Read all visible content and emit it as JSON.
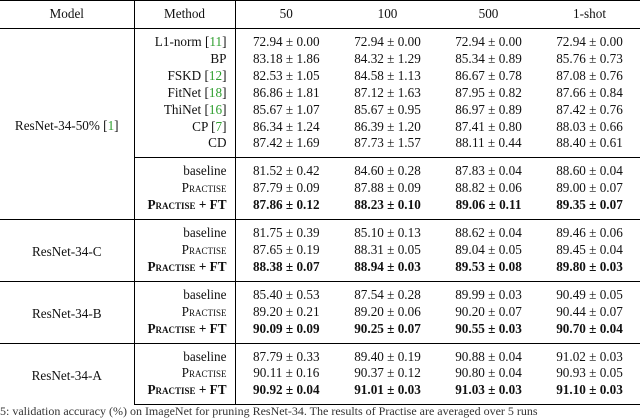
{
  "table": {
    "headers": [
      "Model",
      "Method",
      "50",
      "100",
      "500",
      "1-shot"
    ],
    "groups": [
      {
        "model": "ResNet-34-50%",
        "model_ref": "1",
        "rows": [
          {
            "method": "L1-norm",
            "ref": "11",
            "values": [
              "72.94 ± 0.00",
              "72.94 ± 0.00",
              "72.94 ± 0.00",
              "72.94 ± 0.00"
            ]
          },
          {
            "method": "BP",
            "ref": "",
            "values": [
              "83.18 ± 1.86",
              "84.32 ± 1.29",
              "85.34 ± 0.89",
              "85.76 ± 0.73"
            ]
          },
          {
            "method": "FSKD",
            "ref": "12",
            "values": [
              "82.53 ± 1.05",
              "84.58 ± 1.13",
              "86.67 ± 0.78",
              "87.08 ± 0.76"
            ]
          },
          {
            "method": "FitNet",
            "ref": "18",
            "values": [
              "86.86 ± 1.81",
              "87.12 ± 1.63",
              "87.95 ± 0.82",
              "87.66 ± 0.84"
            ]
          },
          {
            "method": "ThiNet",
            "ref": "16",
            "values": [
              "85.67 ± 1.07",
              "85.67 ± 0.95",
              "86.97 ± 0.89",
              "87.42 ± 0.76"
            ]
          },
          {
            "method": "CP",
            "ref": "7",
            "values": [
              "86.34 ± 1.24",
              "86.39 ± 1.20",
              "87.41 ± 0.80",
              "88.03 ± 0.66"
            ]
          },
          {
            "method": "CD",
            "ref": "",
            "values": [
              "87.42 ± 1.69",
              "87.73 ± 1.57",
              "88.11 ± 0.44",
              "88.40 ± 0.61"
            ]
          },
          {
            "method": "baseline",
            "sc": false,
            "sub_start": true,
            "values": [
              "81.52 ± 0.42",
              "84.60 ± 0.28",
              "87.83 ± 0.04",
              "88.60 ± 0.04"
            ]
          },
          {
            "method": "Practise",
            "sc": true,
            "values": [
              "87.79 ± 0.09",
              "87.88 ± 0.09",
              "88.82 ± 0.06",
              "89.00 ± 0.07"
            ]
          },
          {
            "method": "Practise + FT",
            "sc": true,
            "bold": true,
            "values": [
              "87.86 ± 0.12",
              "88.23 ± 0.10",
              "89.06 ± 0.11",
              "89.35 ± 0.07"
            ]
          }
        ]
      },
      {
        "model": "ResNet-34-C",
        "rows": [
          {
            "method": "baseline",
            "values": [
              "81.75 ± 0.39",
              "85.10 ± 0.13",
              "88.62 ± 0.04",
              "89.46 ± 0.06"
            ]
          },
          {
            "method": "Practise",
            "sc": true,
            "values": [
              "87.65 ± 0.19",
              "88.31 ± 0.05",
              "89.04 ± 0.05",
              "89.45 ± 0.04"
            ]
          },
          {
            "method": "Practise + FT",
            "sc": true,
            "bold": true,
            "values": [
              "88.38 ± 0.07",
              "88.94 ± 0.03",
              "89.53 ± 0.08",
              "89.80 ± 0.03"
            ]
          }
        ]
      },
      {
        "model": "ResNet-34-B",
        "rows": [
          {
            "method": "baseline",
            "values": [
              "85.40 ± 0.53",
              "87.54 ± 0.28",
              "89.99 ± 0.03",
              "90.49 ± 0.05"
            ]
          },
          {
            "method": "Practise",
            "sc": true,
            "values": [
              "89.20 ± 0.21",
              "89.20 ± 0.06",
              "90.20 ± 0.07",
              "90.44 ± 0.07"
            ]
          },
          {
            "method": "Practise + FT",
            "sc": true,
            "bold": true,
            "values": [
              "90.09 ± 0.09",
              "90.25 ± 0.07",
              "90.55 ± 0.03",
              "90.70 ± 0.04"
            ]
          }
        ]
      },
      {
        "model": "ResNet-34-A",
        "rows": [
          {
            "method": "baseline",
            "values": [
              "87.79 ± 0.33",
              "89.40 ± 0.19",
              "90.88 ± 0.04",
              "91.02 ± 0.03"
            ]
          },
          {
            "method": "Practise",
            "sc": true,
            "values": [
              "90.11 ± 0.16",
              "90.37 ± 0.12",
              "90.80 ± 0.04",
              "90.93 ± 0.05"
            ]
          },
          {
            "method": "Practise + FT",
            "sc": true,
            "bold": true,
            "values": [
              "90.92 ± 0.04",
              "91.01 ± 0.03",
              "91.03 ± 0.03",
              "91.10 ± 0.03"
            ]
          }
        ]
      }
    ]
  },
  "caption": "5: validation accuracy (%) on ImageNet for pruning ResNet-34. The results of Practise are averaged over 5 runs"
}
